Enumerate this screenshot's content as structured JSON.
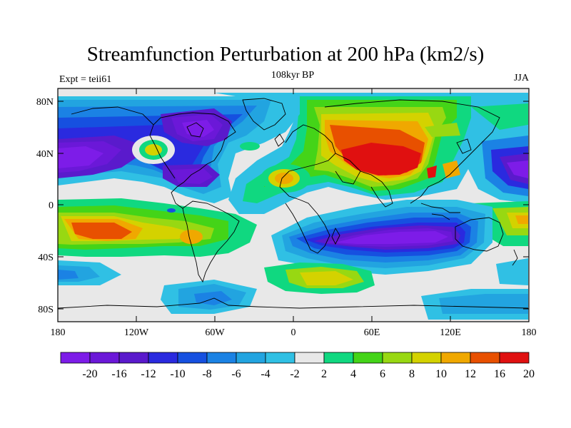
{
  "title": "Streamfunction Perturbation at 200 hPa (km2/s)",
  "subtitle_left": "Expt = teii61",
  "subtitle_center": "108kyr BP",
  "subtitle_right": "JJA",
  "lat_ticks": [
    "80N",
    "40N",
    "0",
    "40S",
    "80S"
  ],
  "lon_ticks": [
    "180",
    "120W",
    "60W",
    "0",
    "60E",
    "120E",
    "180"
  ],
  "colorbar": {
    "labels": [
      "-20",
      "-16",
      "-12",
      "-10",
      "-8",
      "-6",
      "-4",
      "-2",
      "2",
      "4",
      "6",
      "8",
      "10",
      "12",
      "16",
      "20"
    ],
    "colors": [
      "#7d1ce8",
      "#6b18d8",
      "#5a1acc",
      "#2a2adf",
      "#1650e0",
      "#1b82e4",
      "#22a4e0",
      "#30c0e4",
      "#e8e8e8",
      "#10d880",
      "#44d418",
      "#98d812",
      "#d4d200",
      "#f0a800",
      "#e85000",
      "#e01010"
    ]
  }
}
